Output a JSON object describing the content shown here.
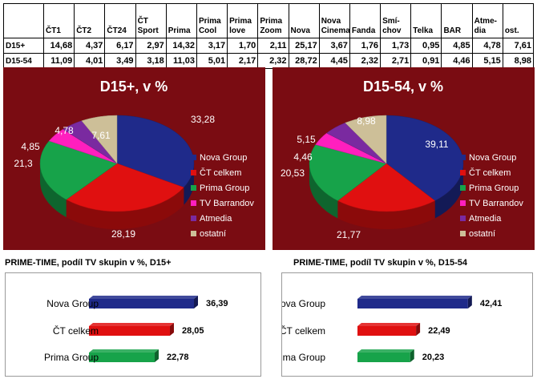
{
  "table": {
    "corner": "",
    "headers": [
      "ČT1",
      "ČT2",
      "ČT24",
      "ČT Sport",
      "Prima",
      "Prima Cool",
      "Prima love",
      "Prima Zoom",
      "Nova",
      "Nova Cinema",
      "Fanda",
      "Smí-chov",
      "Telka",
      "BAR",
      "Atme-dia",
      "ost."
    ],
    "rows": [
      {
        "label": "D15+",
        "values": [
          "14,68",
          "4,37",
          "6,17",
          "2,97",
          "14,32",
          "3,17",
          "1,70",
          "2,11",
          "25,17",
          "3,67",
          "1,76",
          "1,73",
          "0,95",
          "4,85",
          "4,78",
          "7,61"
        ]
      },
      {
        "label": "D15-54",
        "values": [
          "11,09",
          "4,01",
          "3,49",
          "3,18",
          "11,03",
          "5,01",
          "2,17",
          "2,32",
          "28,72",
          "4,45",
          "2,32",
          "2,71",
          "0,91",
          "4,46",
          "5,15",
          "8,98"
        ]
      }
    ]
  },
  "colors": {
    "panel_bg": "#7a0c12",
    "nova": "#1f2a8a",
    "ct": "#e01010",
    "prima": "#17a34a",
    "barrandov": "#ff1fbe",
    "atmedia": "#7a2aa0",
    "ostatni": "#cdbf98"
  },
  "chart_data": [
    {
      "type": "pie",
      "title": "D15+, v %",
      "categories": [
        "Nova Group",
        "ČT celkem",
        "Prima Group",
        "TV Barrandov",
        "Atmedia",
        "ostatní"
      ],
      "values": [
        33.28,
        28.19,
        21.3,
        4.85,
        4.78,
        7.61
      ],
      "labels": [
        "33,28",
        "28,19",
        "21,3",
        "4,85",
        "4,78",
        "7,61"
      ],
      "legend": "right"
    },
    {
      "type": "pie",
      "title": "D15-54, v %",
      "categories": [
        "Nova Group",
        "ČT celkem",
        "Prima Group",
        "TV Barrandov",
        "Atmedia",
        "ostatní"
      ],
      "values": [
        39.11,
        21.77,
        20.53,
        4.46,
        5.15,
        8.98
      ],
      "labels": [
        "39,11",
        "21,77",
        "20,53",
        "4,46",
        "5,15",
        "8,98"
      ],
      "legend": "right"
    },
    {
      "type": "bar",
      "orientation": "horizontal",
      "title": "PRIME-TIME, podíl TV skupin v %, D15+",
      "categories": [
        "Nova Group",
        "ČT celkem",
        "Prima Group"
      ],
      "values": [
        36.39,
        28.05,
        22.78
      ],
      "labels": [
        "36,39",
        "28,05",
        "22,78"
      ]
    },
    {
      "type": "bar",
      "orientation": "horizontal",
      "title": "PRIME-TIME, podíl TV skupin v %, D15-54",
      "categories": [
        "Nova Group",
        "ČT celkem",
        "Prima Group"
      ],
      "values": [
        42.41,
        22.49,
        20.23
      ],
      "labels": [
        "42,41",
        "22,49",
        "20,23"
      ]
    }
  ]
}
